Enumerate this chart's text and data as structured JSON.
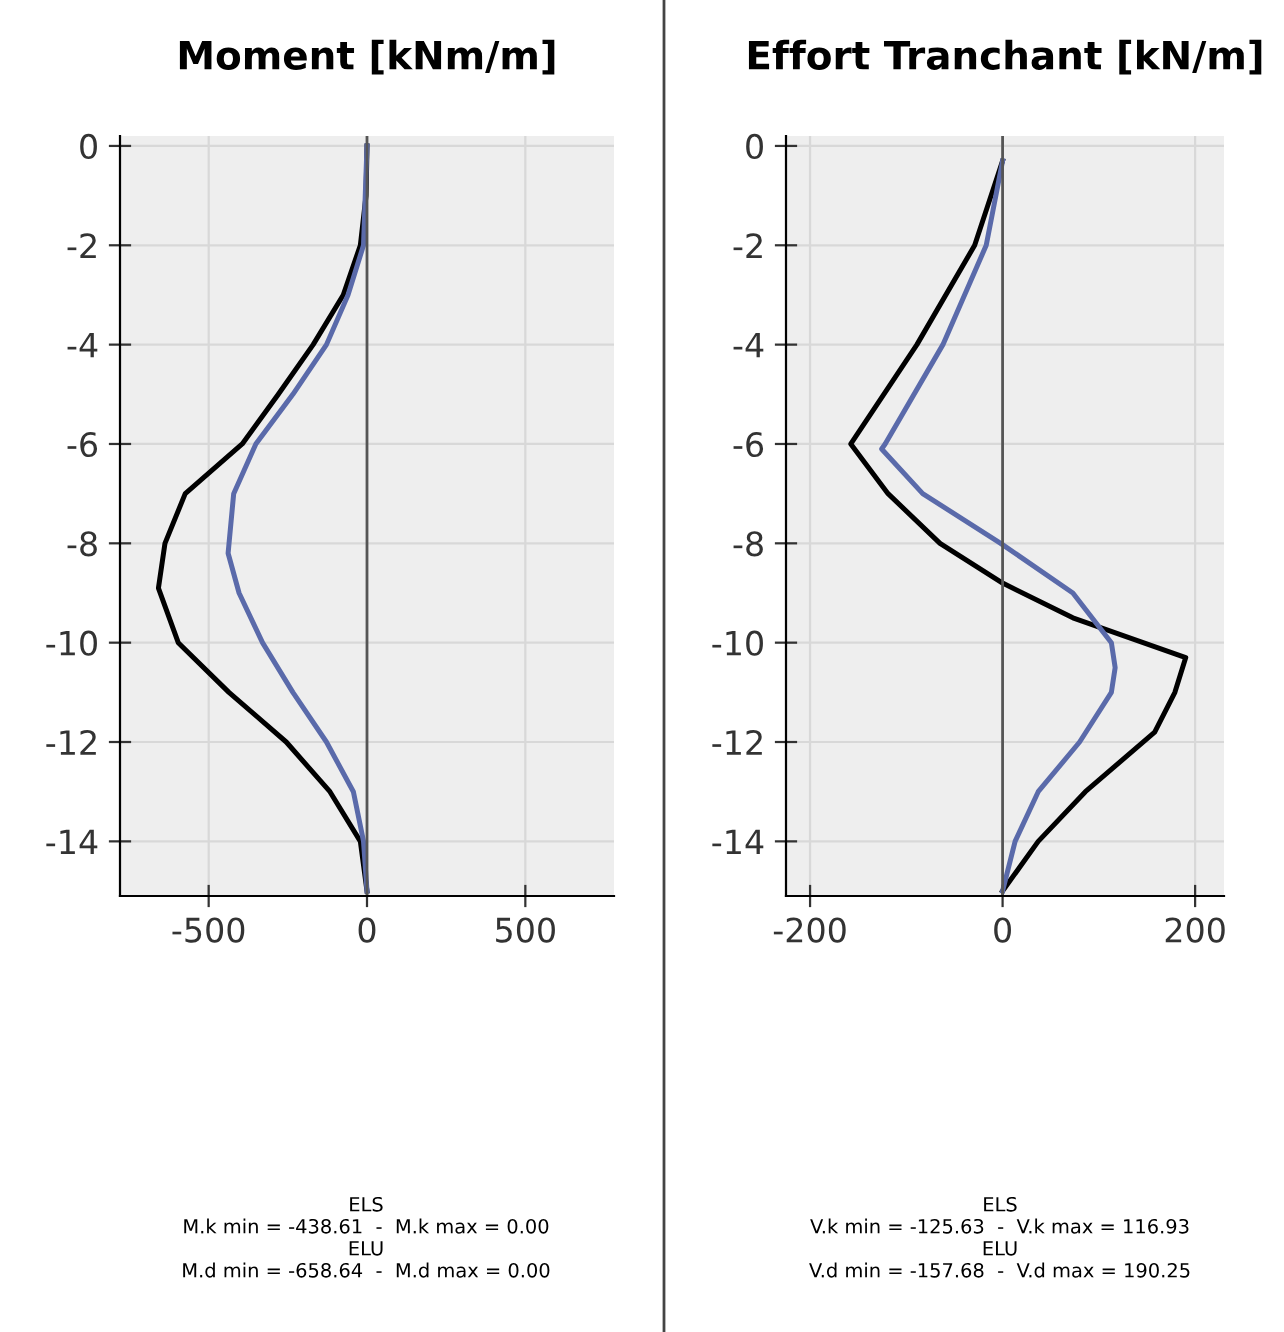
{
  "chart_data": [
    {
      "type": "line",
      "title": "Moment [kNm/m]",
      "xlim": [
        -780,
        780
      ],
      "xticks": [
        -500,
        0,
        500
      ],
      "ylim": [
        -15.1,
        0.2
      ],
      "yticks": [
        0,
        -2,
        -4,
        -6,
        -8,
        -10,
        -12,
        -14
      ],
      "grid": true,
      "ref_lines": [
        {
          "axis": "x",
          "value": 0,
          "color": "#555555"
        }
      ],
      "series": [
        {
          "color": "#000000",
          "x": [
            0,
            -3,
            -21,
            -75,
            -170,
            -280,
            -394,
            -574,
            -638,
            -658.64,
            -596,
            -436,
            -255,
            -117,
            -21,
            0
          ],
          "values": [
            0,
            -1,
            -2,
            -3,
            -4,
            -5,
            -6,
            -7,
            -8,
            -8.9,
            -10,
            -11,
            -12,
            -13,
            -14,
            -15
          ]
        },
        {
          "color": "#5a6aaa",
          "x": [
            0,
            -11,
            -60,
            -128,
            -234,
            -351,
            -421,
            -438.61,
            -404,
            -330,
            -234,
            -128,
            -43,
            -11,
            0
          ],
          "values": [
            0,
            -2,
            -3,
            -4,
            -5,
            -6,
            -7,
            -8.2,
            -9,
            -10,
            -11,
            -12,
            -13,
            -14,
            -15
          ]
        }
      ],
      "annotations": [
        "ELS",
        "M.k min = -438.61  -  M.k max = 0.00",
        "ELU",
        "M.d min = -658.64  -  M.d max = 0.00"
      ]
    },
    {
      "type": "line",
      "title": "Effort Tranchant [kN/m]",
      "xlim": [
        -225,
        230
      ],
      "xticks": [
        -200,
        0,
        200
      ],
      "ylim": [
        -15.1,
        0.2
      ],
      "yticks": [
        0,
        -2,
        -4,
        -6,
        -8,
        -10,
        -12,
        -14
      ],
      "grid": true,
      "ref_lines": [
        {
          "axis": "x",
          "value": 0,
          "color": "#555555"
        }
      ],
      "series": [
        {
          "color": "#000000",
          "x": [
            0,
            -29,
            -89,
            -157.68,
            -119,
            -65,
            0,
            73,
            190.25,
            179,
            158,
            86,
            37,
            0
          ],
          "values": [
            -0.3,
            -2,
            -4,
            -6,
            -7,
            -8,
            -8.8,
            -9.5,
            -10.3,
            -11,
            -11.8,
            -13,
            -14,
            -15
          ]
        },
        {
          "color": "#5a6aaa",
          "x": [
            0,
            -17,
            -62,
            -122,
            -125.63,
            -83,
            -2,
            73,
            113,
            116.93,
            113,
            80,
            37,
            13,
            0
          ],
          "values": [
            -0.3,
            -2,
            -4,
            -6,
            -6.1,
            -7,
            -8,
            -9,
            -10,
            -10.5,
            -11,
            -12,
            -13,
            -14,
            -15
          ]
        }
      ],
      "annotations": [
        "ELS",
        "V.k min = -125.63  -  V.k max = 116.93",
        "ELU",
        "V.d min = -157.68  -  V.d max = 190.25"
      ]
    }
  ]
}
